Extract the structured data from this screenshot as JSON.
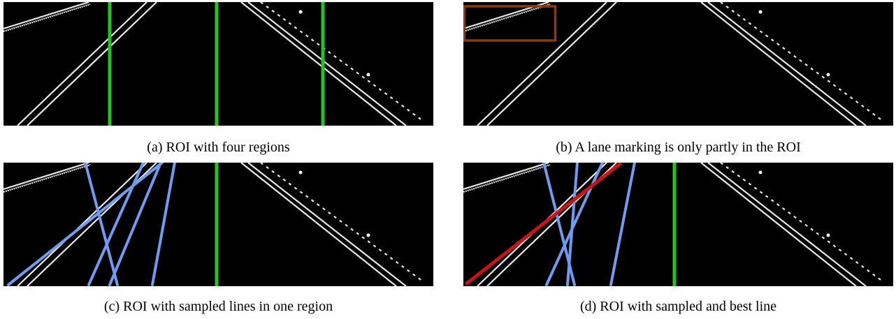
{
  "figure": {
    "panels": [
      {
        "caption": "(a) ROI with four regions"
      },
      {
        "caption": "(b) A lane marking is only partly in the ROI"
      },
      {
        "caption": "(c) ROI with sampled lines in one region"
      },
      {
        "caption": "(d) ROI with sampled and best line"
      }
    ]
  }
}
